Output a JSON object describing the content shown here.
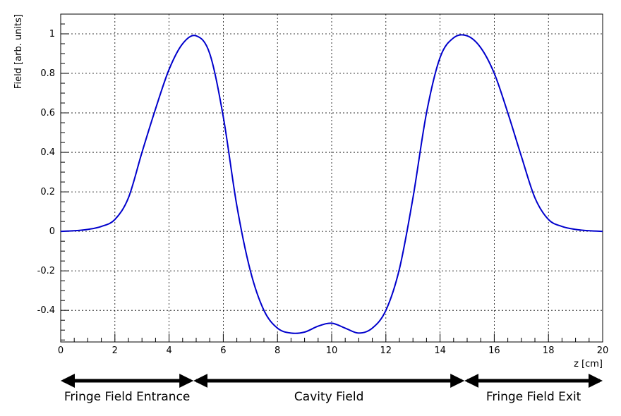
{
  "chart_data": {
    "type": "line",
    "xlabel": "z [cm]",
    "ylabel": "Field [arb. units]",
    "xlim": [
      0,
      20
    ],
    "ylim": [
      -0.56,
      1.1
    ],
    "grid": true,
    "x_ticks": [
      0,
      2,
      4,
      6,
      8,
      10,
      12,
      14,
      16,
      18,
      20
    ],
    "x_tick_labels": [
      "0",
      "2",
      "4",
      "6",
      "8",
      "10",
      "12",
      "14",
      "16",
      "18",
      "20"
    ],
    "y_ticks": [
      -0.4,
      -0.2,
      0,
      0.2,
      0.4,
      0.6,
      0.8,
      1.0
    ],
    "y_tick_labels": [
      "-0.4",
      "-0.2",
      "0",
      "0.2",
      "0.4",
      "0.6",
      "0.8",
      "1"
    ],
    "series": [
      {
        "color": "#0000cc",
        "x": [
          0,
          0.5,
          1,
          1.5,
          2,
          2.5,
          3,
          3.5,
          4,
          4.5,
          5,
          5.5,
          6,
          6.5,
          7,
          7.5,
          8,
          8.5,
          9,
          9.5,
          10,
          10.5,
          11,
          11.5,
          12,
          12.5,
          13,
          13.5,
          14,
          14.5,
          15,
          15.5,
          16,
          16.5,
          17,
          17.5,
          18,
          18.5,
          19,
          19.5,
          20
        ],
        "y": [
          0.0,
          0.003,
          0.01,
          0.025,
          0.06,
          0.17,
          0.4,
          0.62,
          0.82,
          0.95,
          0.99,
          0.9,
          0.58,
          0.13,
          -0.2,
          -0.4,
          -0.49,
          -0.515,
          -0.51,
          -0.48,
          -0.465,
          -0.49,
          -0.515,
          -0.49,
          -0.4,
          -0.19,
          0.17,
          0.6,
          0.88,
          0.98,
          0.99,
          0.93,
          0.8,
          0.6,
          0.38,
          0.17,
          0.06,
          0.025,
          0.01,
          0.003,
          0.0
        ]
      }
    ],
    "regions": [
      {
        "label": "Fringe Field Entrance",
        "from": 0,
        "to": 4.9
      },
      {
        "label": "Cavity Field",
        "from": 4.9,
        "to": 14.9
      },
      {
        "label": "Fringe Field Exit",
        "from": 14.9,
        "to": 20
      }
    ]
  }
}
